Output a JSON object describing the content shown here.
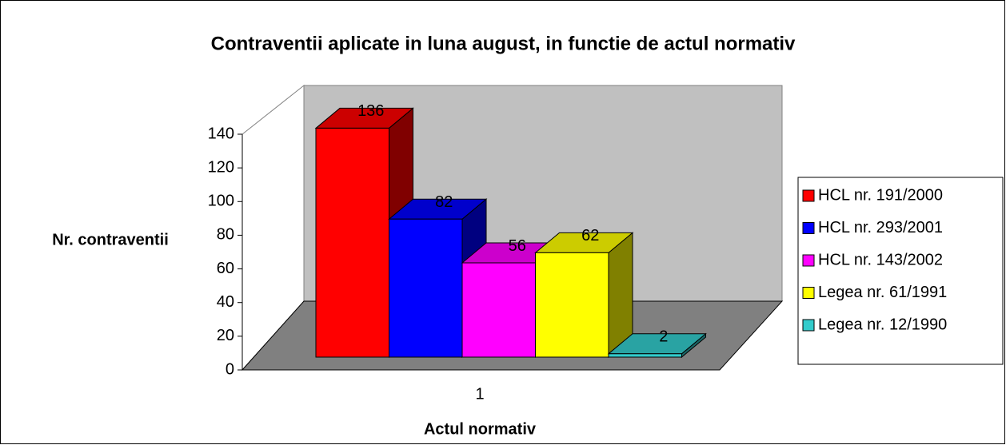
{
  "chart_data": {
    "type": "bar3d",
    "title": "Contraventii aplicate in luna august, in functie de actul normativ",
    "x_label": "Actul normativ",
    "y_label": "Nr. contraventii",
    "categories": [
      "1"
    ],
    "series": [
      {
        "name": "HCL nr. 191/2000",
        "color": "#ff0000",
        "values": [
          136
        ]
      },
      {
        "name": "HCL nr. 293/2001",
        "color": "#0000ff",
        "values": [
          82
        ]
      },
      {
        "name": "HCL nr. 143/2002",
        "color": "#ff00ff",
        "values": [
          56
        ]
      },
      {
        "name": "Legea nr. 61/1991",
        "color": "#ffff00",
        "values": [
          62
        ]
      },
      {
        "name": "Legea nr. 12/1990",
        "color": "#33cccc",
        "values": [
          2
        ]
      }
    ],
    "ylim": [
      0,
      140
    ],
    "yticks": [
      0,
      20,
      40,
      60,
      80,
      100,
      120,
      140
    ],
    "grid": false,
    "legend": "right"
  }
}
